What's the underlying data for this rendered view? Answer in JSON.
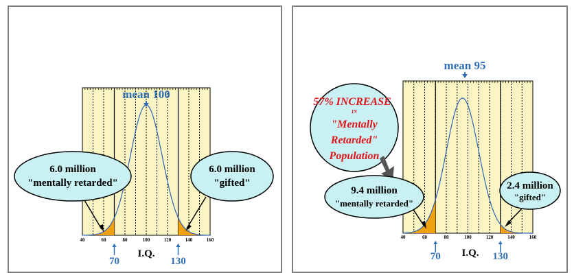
{
  "chart_data": [
    {
      "type": "area",
      "title": "mean 100",
      "mean": 100,
      "sd": 15,
      "x_ticks": [
        40,
        60,
        80,
        100,
        120,
        140,
        160
      ],
      "xlim": [
        40,
        160
      ],
      "xlabel": "I.Q.",
      "cutoffs": [
        {
          "value": 70,
          "label": "70"
        },
        {
          "value": 130,
          "label": "130"
        }
      ],
      "annotations": [
        {
          "name": "mentally-retarded",
          "count": "6.0 million",
          "label": "\"mentally retarded\""
        },
        {
          "name": "gifted",
          "count": "6.0 million",
          "label": "\"gifted\""
        }
      ],
      "colors": {
        "plot_bg": "#fbf5c3",
        "curve": "#2e62b5",
        "shaded": "#f0a10e",
        "bubble": "#c9f1f3",
        "accent": "#2f6fb5"
      }
    },
    {
      "type": "area",
      "title": "mean 95",
      "mean": 95,
      "sd": 15,
      "x_ticks": [
        40,
        60,
        80,
        100,
        120,
        140,
        160
      ],
      "xlim": [
        40,
        160
      ],
      "xlabel": "I.Q.",
      "cutoffs": [
        {
          "value": 70,
          "label": "70"
        },
        {
          "value": 130,
          "label": "130"
        }
      ],
      "annotations": [
        {
          "name": "mentally-retarded",
          "count": "9.4 million",
          "label": "\"mentally retarded\""
        },
        {
          "name": "gifted",
          "count": "2.4 million",
          "label": "\"gifted\""
        }
      ],
      "callout": {
        "line1": "57% INCREASE",
        "line2": "IN",
        "line3": "\"Mentally",
        "line4": "Retarded\"",
        "line5": "Population"
      },
      "colors": {
        "plot_bg": "#fbf5c3",
        "curve": "#2e62b5",
        "shaded": "#f0a10e",
        "bubble": "#c9f1f3",
        "accent": "#e0161b"
      }
    }
  ]
}
